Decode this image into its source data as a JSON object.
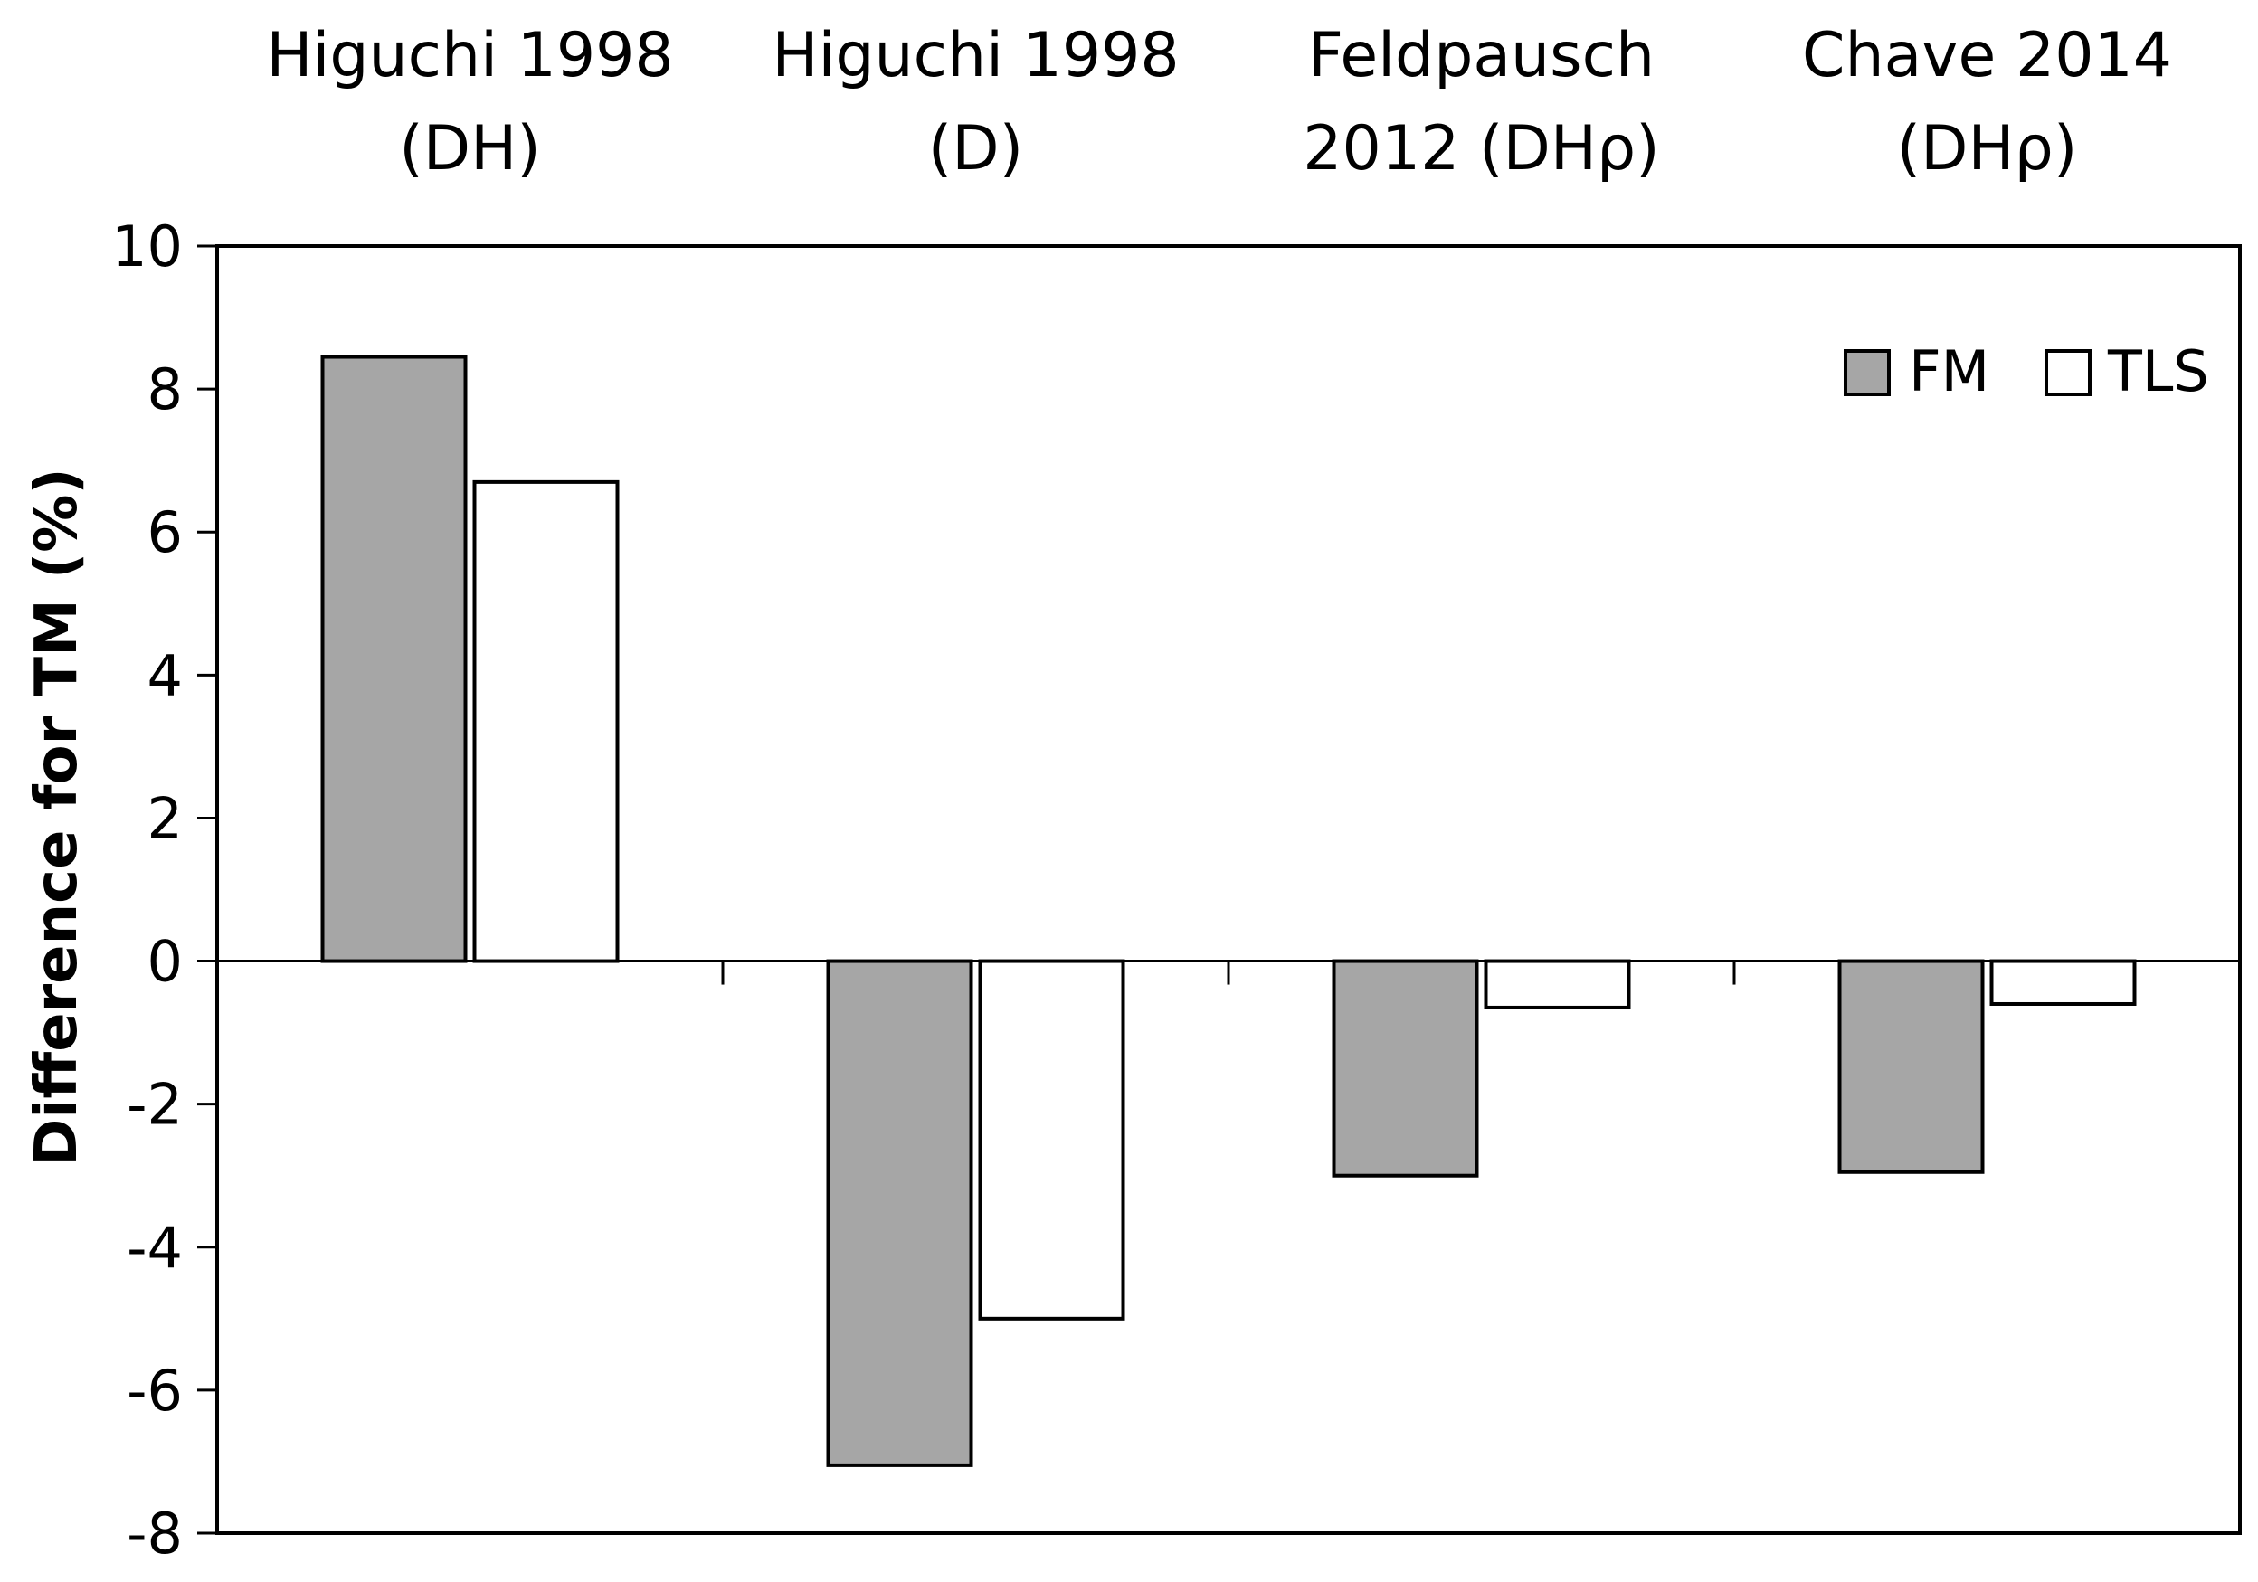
{
  "chart_data": {
    "type": "bar",
    "categories": [
      [
        "Higuchi 1998",
        "(DH)"
      ],
      [
        "Higuchi 1998",
        "(D)"
      ],
      [
        "Feldpausch",
        "2012 (DHρ)"
      ],
      [
        "Chave 2014",
        "(DHρ)"
      ]
    ],
    "series": [
      {
        "name": "FM",
        "color": "#a6a6a6",
        "values": [
          8.45,
          -7.05,
          -3.0,
          -2.95
        ]
      },
      {
        "name": "TLS",
        "color": "#ffffff",
        "values": [
          6.7,
          -5.0,
          -0.65,
          -0.6
        ]
      }
    ],
    "title": "",
    "xlabel": "",
    "ylabel": "Difference for TM (%)",
    "ylim": [
      -8,
      10
    ],
    "yticks": [
      10,
      8,
      6,
      4,
      2,
      0,
      -2,
      -4,
      -6,
      -8
    ],
    "grid": false,
    "legend_position": "top-right"
  }
}
